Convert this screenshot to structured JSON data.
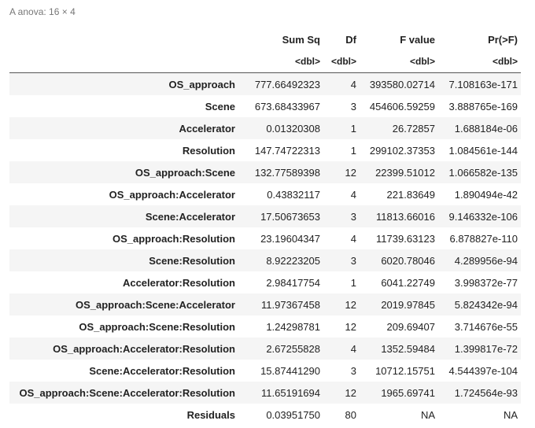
{
  "caption": "A anova: 16 × 4",
  "columns": [
    "Sum Sq",
    "Df",
    "F value",
    "Pr(>F)"
  ],
  "types": [
    "<dbl>",
    "<dbl>",
    "<dbl>",
    "<dbl>"
  ],
  "rows": [
    {
      "term": "OS_approach",
      "sumsq": "777.66492323",
      "df": "4",
      "fvalue": "393580.02714",
      "pr": "7.108163e-171"
    },
    {
      "term": "Scene",
      "sumsq": "673.68433967",
      "df": "3",
      "fvalue": "454606.59259",
      "pr": "3.888765e-169"
    },
    {
      "term": "Accelerator",
      "sumsq": "0.01320308",
      "df": "1",
      "fvalue": "26.72857",
      "pr": "1.688184e-06"
    },
    {
      "term": "Resolution",
      "sumsq": "147.74722313",
      "df": "1",
      "fvalue": "299102.37353",
      "pr": "1.084561e-144"
    },
    {
      "term": "OS_approach:Scene",
      "sumsq": "132.77589398",
      "df": "12",
      "fvalue": "22399.51012",
      "pr": "1.066582e-135"
    },
    {
      "term": "OS_approach:Accelerator",
      "sumsq": "0.43832117",
      "df": "4",
      "fvalue": "221.83649",
      "pr": "1.890494e-42"
    },
    {
      "term": "Scene:Accelerator",
      "sumsq": "17.50673653",
      "df": "3",
      "fvalue": "11813.66016",
      "pr": "9.146332e-106"
    },
    {
      "term": "OS_approach:Resolution",
      "sumsq": "23.19604347",
      "df": "4",
      "fvalue": "11739.63123",
      "pr": "6.878827e-110"
    },
    {
      "term": "Scene:Resolution",
      "sumsq": "8.92223205",
      "df": "3",
      "fvalue": "6020.78046",
      "pr": "4.289956e-94"
    },
    {
      "term": "Accelerator:Resolution",
      "sumsq": "2.98417754",
      "df": "1",
      "fvalue": "6041.22749",
      "pr": "3.998372e-77"
    },
    {
      "term": "OS_approach:Scene:Accelerator",
      "sumsq": "11.97367458",
      "df": "12",
      "fvalue": "2019.97845",
      "pr": "5.824342e-94"
    },
    {
      "term": "OS_approach:Scene:Resolution",
      "sumsq": "1.24298781",
      "df": "12",
      "fvalue": "209.69407",
      "pr": "3.714676e-55"
    },
    {
      "term": "OS_approach:Accelerator:Resolution",
      "sumsq": "2.67255828",
      "df": "4",
      "fvalue": "1352.59484",
      "pr": "1.399817e-72"
    },
    {
      "term": "Scene:Accelerator:Resolution",
      "sumsq": "15.87441290",
      "df": "3",
      "fvalue": "10712.15751",
      "pr": "4.544397e-104"
    },
    {
      "term": "OS_approach:Scene:Accelerator:Resolution",
      "sumsq": "11.65191694",
      "df": "12",
      "fvalue": "1965.69741",
      "pr": "1.724564e-93"
    },
    {
      "term": "Residuals",
      "sumsq": "0.03951750",
      "df": "80",
      "fvalue": "NA",
      "pr": "NA"
    }
  ]
}
